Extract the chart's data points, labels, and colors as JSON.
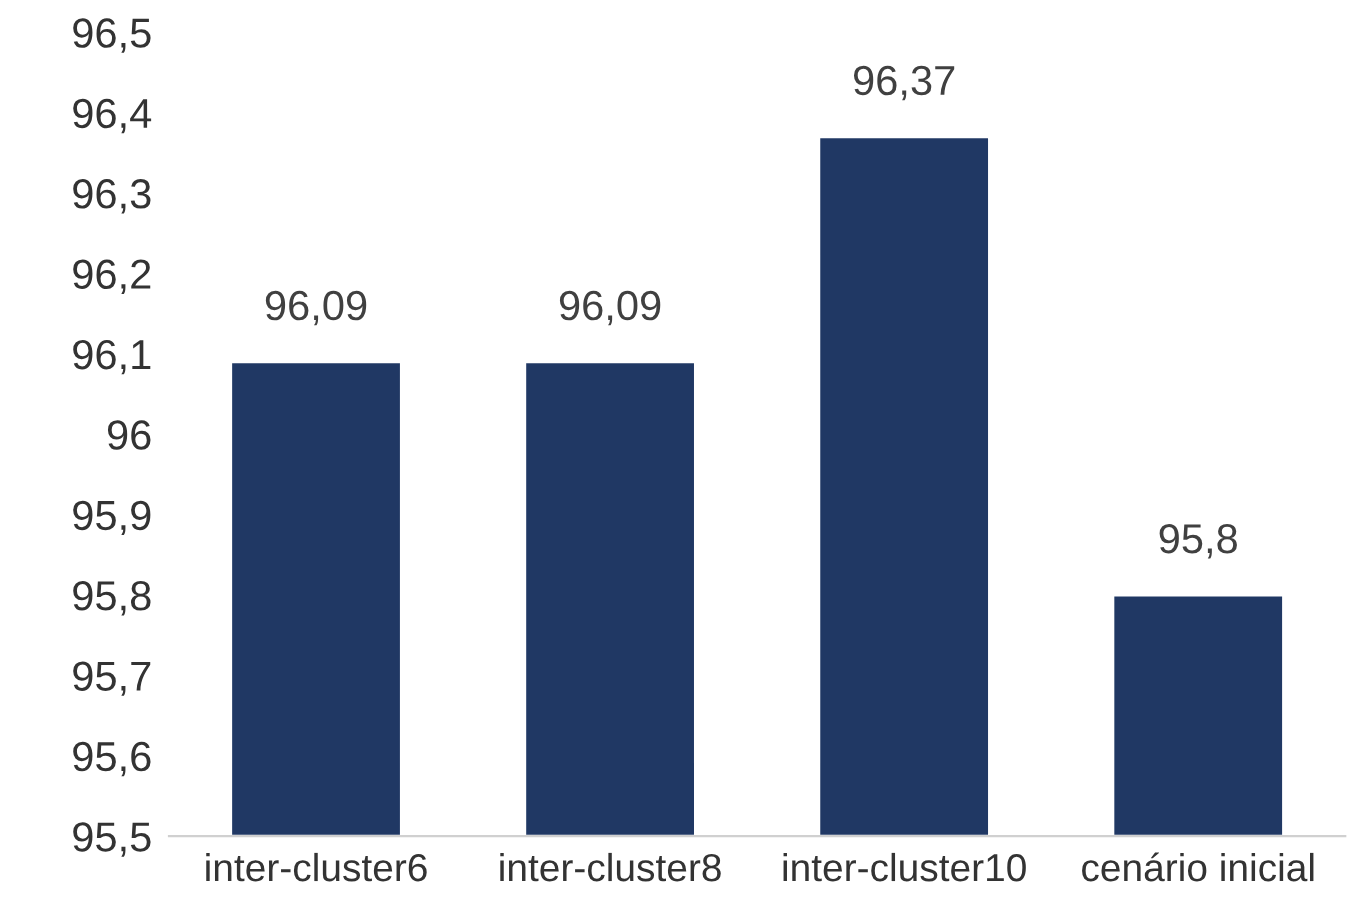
{
  "chart_data": {
    "type": "bar",
    "categories": [
      "inter-cluster6",
      "inter-cluster8",
      "inter-cluster10",
      "cenário inicial"
    ],
    "values": [
      96.09,
      96.09,
      96.37,
      95.8
    ],
    "value_labels": [
      "96,09",
      "96,09",
      "96,37",
      "95,8"
    ],
    "color": "#203864",
    "ylim": [
      95.5,
      96.5
    ],
    "yticks": [
      {
        "value": 95.5,
        "label": "95,5"
      },
      {
        "value": 95.6,
        "label": "95,6"
      },
      {
        "value": 95.7,
        "label": "95,7"
      },
      {
        "value": 95.8,
        "label": "95,8"
      },
      {
        "value": 95.9,
        "label": "95,9"
      },
      96,
      {
        "value": 96.1,
        "label": "96,1"
      },
      {
        "value": 96.2,
        "label": "96,2"
      },
      {
        "value": 96.3,
        "label": "96,3"
      },
      {
        "value": 96.4,
        "label": "96,4"
      },
      {
        "value": 96.5,
        "label": "96,5"
      }
    ],
    "grid": false,
    "legend": false
  }
}
